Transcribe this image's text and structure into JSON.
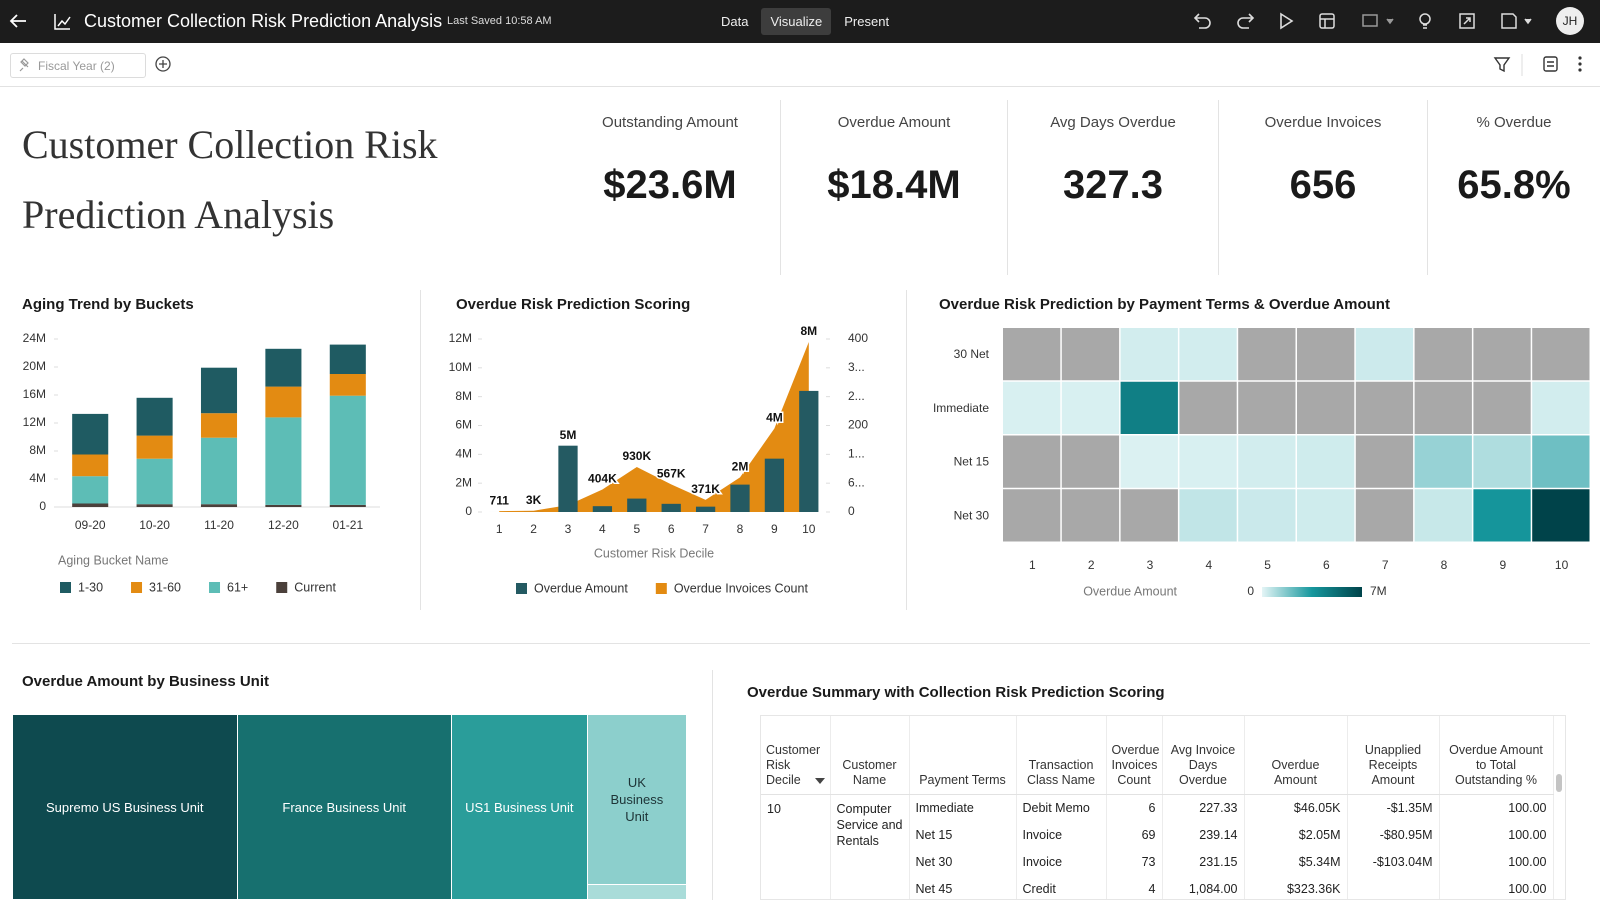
{
  "header": {
    "title": "Customer Collection Risk Prediction Analysis",
    "last_saved": "Last Saved 10:58 AM",
    "tabs": [
      "Data",
      "Visualize",
      "Present"
    ],
    "active_tab": 1,
    "user": "JH"
  },
  "filter_bar": {
    "filter": "Fiscal Year (2)"
  },
  "canvas_title": "Customer Collection Risk Prediction Analysis",
  "kpis": [
    {
      "label": "Outstanding Amount",
      "value": "$23.6M"
    },
    {
      "label": "Overdue Amount",
      "value": "$18.4M"
    },
    {
      "label": "Avg Days Overdue",
      "value": "327.3"
    },
    {
      "label": "Overdue Invoices",
      "value": "656"
    },
    {
      "label": "% Overdue",
      "value": "65.8%"
    }
  ],
  "chart_data": [
    {
      "type": "stacked-bar",
      "title": "Aging Trend by Buckets",
      "categories": [
        "09-20",
        "10-20",
        "11-20",
        "12-20",
        "01-21"
      ],
      "series": [
        {
          "name": "1-30",
          "color": "#1f5b62",
          "values": [
            5800000,
            5400000,
            6500000,
            5400000,
            4200000
          ]
        },
        {
          "name": "31-60",
          "color": "#e38b12",
          "values": [
            3100000,
            3300000,
            3500000,
            4400000,
            3100000
          ]
        },
        {
          "name": "61+",
          "color": "#5dbdb6",
          "values": [
            3900000,
            6500000,
            9500000,
            12500000,
            15600000
          ]
        },
        {
          "name": "Current",
          "color": "#4b403b",
          "values": [
            500000,
            400000,
            400000,
            300000,
            300000
          ]
        }
      ],
      "legend_title": "Aging Bucket Name",
      "ylim": [
        0,
        24000000
      ],
      "yticks": [
        0,
        {
          "value": 4000000,
          "label": "4M"
        },
        {
          "value": 8000000,
          "label": "8M"
        },
        {
          "value": 12000000,
          "label": "12M"
        },
        {
          "value": 16000000,
          "label": "16M"
        },
        {
          "value": 20000000,
          "label": "20M"
        },
        {
          "value": 24000000,
          "label": "24M"
        }
      ]
    },
    {
      "type": "bar-area",
      "title": "Overdue Risk Prediction Scoring",
      "x_label": "Customer Risk Decile",
      "categories": [
        1,
        2,
        3,
        4,
        5,
        6,
        7,
        8,
        9,
        10
      ],
      "series": [
        {
          "name": "Overdue Amount",
          "color": "#245a62",
          "type": "bar",
          "values": [
            711,
            3000,
            4600000,
            404000,
            930000,
            567000,
            371000,
            1900000,
            3700000,
            8400000
          ],
          "value_labels": [
            "711",
            "3K",
            "5M",
            "404K",
            "930K",
            "567K",
            "371K",
            "2M",
            "4M",
            "8M"
          ]
        },
        {
          "name": "Overdue Invoices Count",
          "color": "#e38b12",
          "type": "area",
          "axis": "y2",
          "values": [
            2,
            3,
            16,
            52,
            104,
            64,
            28,
            80,
            193,
            393
          ]
        }
      ],
      "ylim": [
        0,
        12000000
      ],
      "yticks": [
        0,
        {
          "value": 2000000,
          "label": "2M"
        },
        {
          "value": 4000000,
          "label": "4M"
        },
        {
          "value": 6000000,
          "label": "6M"
        },
        {
          "value": 8000000,
          "label": "8M"
        },
        {
          "value": 10000000,
          "label": "10M"
        },
        {
          "value": 12000000,
          "label": "12M"
        }
      ],
      "y2lim": [
        0,
        400
      ],
      "y2ticks": [
        0,
        {
          "value": 66.67,
          "label": "6..."
        },
        {
          "value": 133.33,
          "label": "1..."
        },
        200,
        {
          "value": 266.67,
          "label": "2..."
        },
        {
          "value": 333.33,
          "label": "3..."
        },
        400
      ]
    },
    {
      "type": "heatmap",
      "title": "Overdue Risk Prediction by Payment Terms & Overdue Amount",
      "x": [
        1,
        2,
        3,
        4,
        5,
        6,
        7,
        8,
        9,
        10
      ],
      "y": [
        "30 Net",
        "Immediate",
        "Net 15",
        "Net 30"
      ],
      "values": [
        [
          null,
          null,
          300000,
          300000,
          null,
          null,
          400000,
          null,
          null,
          null
        ],
        [
          200000,
          200000,
          4500000,
          null,
          null,
          null,
          null,
          null,
          null,
          300000
        ],
        [
          null,
          null,
          150000,
          200000,
          300000,
          350000,
          null,
          1300000,
          900000,
          2000000
        ],
        [
          null,
          null,
          null,
          600000,
          450000,
          350000,
          null,
          500000,
          3600000,
          7000000
        ]
      ],
      "color_label": "Overdue Amount",
      "zlim": [
        0,
        7000000
      ],
      "zticks": [
        0,
        {
          "value": 7000000,
          "label": "7M"
        }
      ],
      "colors": [
        "#e4f5f6",
        "#16979d",
        "#00434a"
      ],
      "null_color": "#a8a8a8"
    },
    {
      "type": "treemap",
      "title": "Overdue Amount by Business Unit",
      "categories": [
        "Supremo US Business Unit",
        "France Business Unit",
        "US1 Business Unit",
        "UK Business Unit",
        null
      ],
      "values": [
        6130000,
        5850000,
        3710000,
        2490000,
        220000
      ],
      "colors": [
        "#0e4a4f",
        "#17706f",
        "#2a9d9a",
        "#8ccfcc",
        "#a9dcd9"
      ]
    }
  ],
  "table": {
    "title": "Overdue Summary with Collection Risk Prediction Scoring",
    "columns": [
      "Customer Risk Decile",
      "Customer Name",
      "Payment Terms",
      "Transaction Class Name",
      "Overdue Invoices Count",
      "Avg Invoice Days Overdue",
      "Overdue Amount",
      "Unapplied Receipts Amount",
      "Overdue Amount to Total Outstanding %"
    ],
    "numeric_columns": [
      4,
      5,
      6,
      7,
      8
    ],
    "span_columns": 2,
    "rows": [
      [
        "10",
        "Computer Service and Rentals",
        "Immediate",
        "Debit Memo",
        "6",
        "227.33",
        "$46.05K",
        "-$1.35M",
        "100.00"
      ],
      [
        null,
        null,
        "Net 15",
        "Invoice",
        "69",
        "239.14",
        "$2.05M",
        "-$80.95M",
        "100.00"
      ],
      [
        null,
        null,
        "Net 30",
        "Invoice",
        "73",
        "231.15",
        "$5.34M",
        "-$103.04M",
        "100.00"
      ],
      [
        null,
        null,
        "Net 45",
        "Credit",
        "4",
        "1,084.00",
        "$323.36K",
        null,
        "100.00"
      ]
    ]
  }
}
